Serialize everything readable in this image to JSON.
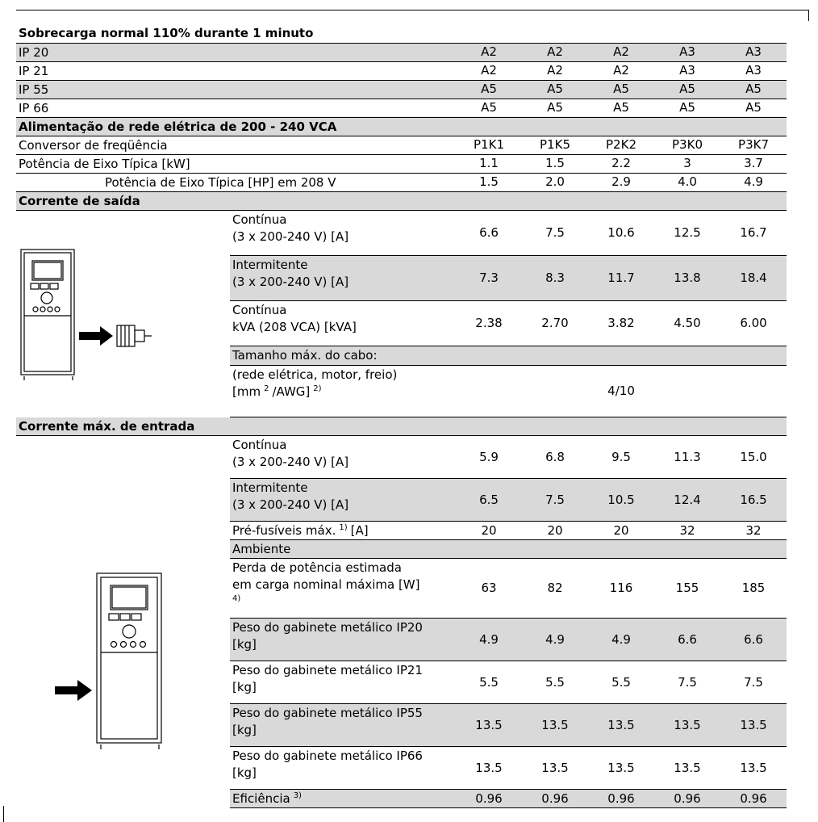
{
  "title": "Sobrecarga normal 110% durante 1 minuto",
  "enclosures": [
    {
      "label": "IP 20",
      "values": [
        "A2",
        "A2",
        "A2",
        "A3",
        "A3"
      ]
    },
    {
      "label": "IP 21",
      "values": [
        "A2",
        "A2",
        "A2",
        "A3",
        "A3"
      ]
    },
    {
      "label": "IP 55",
      "values": [
        "A5",
        "A5",
        "A5",
        "A5",
        "A5"
      ]
    },
    {
      "label": "IP 66",
      "values": [
        "A5",
        "A5",
        "A5",
        "A5",
        "A5"
      ]
    }
  ],
  "supply_heading": "Alimentação de rede elétrica de 200 - 240 VCA",
  "ratings": [
    {
      "label": "Conversor de freqüência",
      "values": [
        "P1K1",
        "P1K5",
        "P2K2",
        "P3K0",
        "P3K7"
      ]
    },
    {
      "label": "Potência de Eixo Típica [kW]",
      "values": [
        "1.1",
        "1.5",
        "2.2",
        "3",
        "3.7"
      ]
    },
    {
      "label": "Potência de Eixo Típica [HP] em 208 V",
      "values": [
        "1.5",
        "2.0",
        "2.9",
        "4.0",
        "4.9"
      ]
    }
  ],
  "output": {
    "heading": "Corrente de saída",
    "rows": [
      {
        "label": [
          [
            {
              "text": "Contínua"
            }
          ],
          [
            {
              "text": "(3 x 200-240 V) [A]"
            }
          ]
        ],
        "values": [
          "6.6",
          "7.5",
          "10.6",
          "12.5",
          "16.7"
        ]
      },
      {
        "label": [
          [
            {
              "text": "Intermitente"
            }
          ],
          [
            {
              "text": "(3 x 200-240 V) [A]"
            }
          ]
        ],
        "values": [
          "7.3",
          "8.3",
          "11.7",
          "13.8",
          "18.4"
        ]
      },
      {
        "label": [
          [
            {
              "text": "Contínua"
            }
          ],
          [
            {
              "text": "kVA (208 VCA) [kVA]"
            }
          ]
        ],
        "values": [
          "2.38",
          "2.70",
          "3.82",
          "4.50",
          "6.00"
        ]
      },
      {
        "label": [
          [
            {
              "text": "Tamanho máx. do cabo:"
            }
          ]
        ]
      },
      {
        "label": [
          [
            {
              "text": "(rede elétrica, motor, freio)"
            }
          ],
          [
            {
              "text": "[mm"
            },
            {
              "sup": "2"
            },
            {
              "text": "/AWG]"
            },
            {
              "sup": "2)"
            }
          ]
        ],
        "value": "4/10"
      }
    ]
  },
  "input": {
    "heading": "Corrente máx. de entrada",
    "rows": [
      {
        "label": [
          [
            {
              "text": "Contínua"
            }
          ],
          [
            {
              "text": "(3 x 200-240 V) [A]"
            }
          ]
        ],
        "values": [
          "5.9",
          "6.8",
          "9.5",
          "11.3",
          "15.0"
        ]
      },
      {
        "label": [
          [
            {
              "text": "Intermitente"
            }
          ],
          [
            {
              "text": "(3 x 200-240 V) [A]"
            }
          ]
        ],
        "values": [
          "6.5",
          "7.5",
          "10.5",
          "12.4",
          "16.5"
        ]
      },
      {
        "label": [
          [
            {
              "text": "Pré-fusíveis máx."
            },
            {
              "sup": "1)"
            },
            {
              "text": "[A]"
            }
          ]
        ],
        "values": [
          "20",
          "20",
          "20",
          "32",
          "32"
        ]
      },
      {
        "label": [
          [
            {
              "text": "Ambiente"
            }
          ]
        ]
      },
      {
        "label": [
          [
            {
              "text": "Perda de potência estimada"
            }
          ],
          [
            {
              "text": "em carga nominal máxima [W]"
            }
          ],
          [
            {
              "sup": "4)"
            }
          ]
        ],
        "values": [
          "63",
          "82",
          "116",
          "155",
          "185"
        ]
      },
      {
        "label": [
          [
            {
              "text": "Peso do gabinete metálico IP20"
            }
          ],
          [
            {
              "text": "[kg]"
            }
          ]
        ],
        "values": [
          "4.9",
          "4.9",
          "4.9",
          "6.6",
          "6.6"
        ]
      },
      {
        "label": [
          [
            {
              "text": "Peso do gabinete metálico IP21"
            }
          ],
          [
            {
              "text": "[kg]"
            }
          ]
        ],
        "values": [
          "5.5",
          "5.5",
          "5.5",
          "7.5",
          "7.5"
        ]
      },
      {
        "label": [
          [
            {
              "text": "Peso do gabinete metálico IP55"
            }
          ],
          [
            {
              "text": "[kg]"
            }
          ]
        ],
        "values": [
          "13.5",
          "13.5",
          "13.5",
          "13.5",
          "13.5"
        ]
      },
      {
        "label": [
          [
            {
              "text": "Peso do gabinete metálico IP66"
            }
          ],
          [
            {
              "text": "[kg]"
            }
          ]
        ],
        "values": [
          "13.5",
          "13.5",
          "13.5",
          "13.5",
          "13.5"
        ]
      },
      {
        "label": [
          [
            {
              "text": "Eficiência"
            },
            {
              "sup": "3)"
            }
          ]
        ],
        "values": [
          "0.96",
          "0.96",
          "0.96",
          "0.96",
          "0.96"
        ]
      }
    ]
  }
}
